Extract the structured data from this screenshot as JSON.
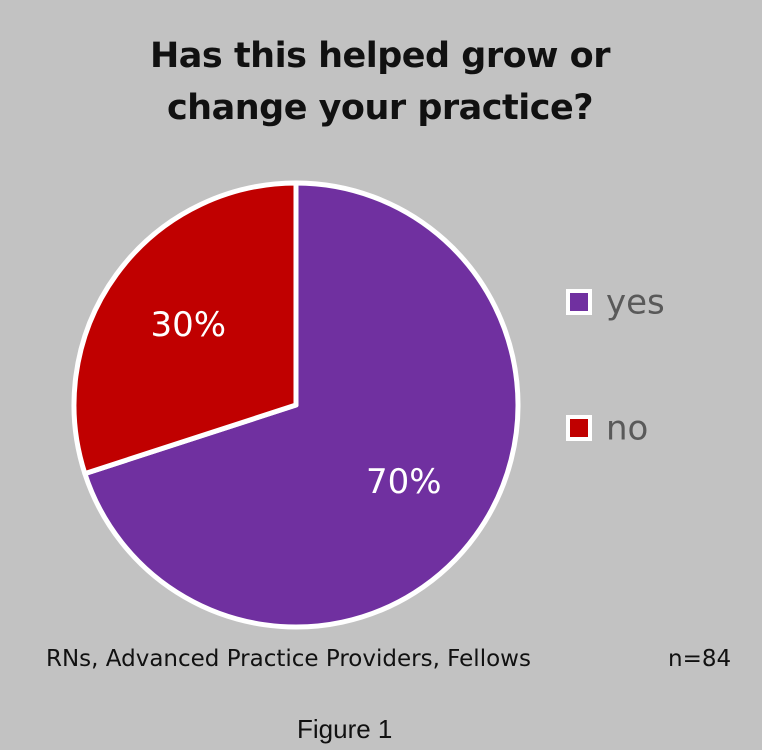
{
  "chart_data": {
    "type": "pie",
    "title": "Has this helped grow or change your practice?",
    "categories": [
      "yes",
      "no"
    ],
    "values": [
      70,
      30
    ],
    "value_labels": [
      "70%",
      "30%"
    ],
    "colors": [
      "#7030a0",
      "#c00000"
    ],
    "legend": "right",
    "footnote": "RNs, Advanced Practice Providers, Fellows",
    "sample_size": "n=84",
    "caption": "Figure 1"
  }
}
